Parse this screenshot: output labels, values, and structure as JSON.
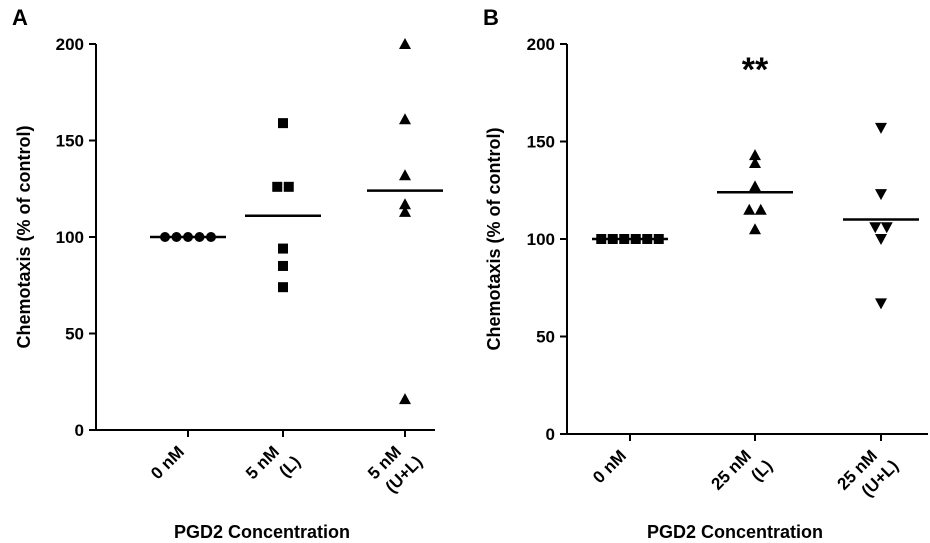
{
  "chart_data": [
    {
      "type": "scatter",
      "panel_label": "A",
      "ylabel": "Chemotaxis (% of control)",
      "xlabel": "PGD2 Concentration",
      "ylim": [
        0,
        200
      ],
      "yticks": [
        0,
        50,
        100,
        150,
        200
      ],
      "categories": [
        {
          "lines": [
            "0 nM"
          ],
          "marker": "circle",
          "values": [
            100,
            100,
            100,
            100,
            100
          ],
          "mean": 100
        },
        {
          "lines": [
            "5 nM",
            "(L)"
          ],
          "marker": "square",
          "values": [
            159,
            126,
            126,
            94,
            85,
            74
          ],
          "mean": 111
        },
        {
          "lines": [
            "5 nM",
            "(U+L)"
          ],
          "marker": "triangle-up",
          "values": [
            200,
            161,
            132,
            117,
            113,
            16
          ],
          "mean": 124
        }
      ],
      "annotation": ""
    },
    {
      "type": "scatter",
      "panel_label": "B",
      "ylabel": "Chemotaxis (% of control)",
      "xlabel": "PGD2 Concentration",
      "ylim": [
        0,
        200
      ],
      "yticks": [
        0,
        50,
        100,
        150,
        200
      ],
      "categories": [
        {
          "lines": [
            "0 nM"
          ],
          "marker": "square",
          "values": [
            100,
            100,
            100,
            100,
            100,
            100
          ],
          "mean": 100
        },
        {
          "lines": [
            "25 nM",
            "(L)"
          ],
          "marker": "triangle-up",
          "values": [
            143,
            139,
            127,
            115,
            115,
            105
          ],
          "mean": 124
        },
        {
          "lines": [
            "25 nM",
            "(U+L)"
          ],
          "marker": "triangle-down",
          "values": [
            157,
            123,
            106,
            106,
            100,
            67
          ],
          "mean": 110
        }
      ],
      "annotation": "**",
      "annotation_category": 1
    }
  ]
}
